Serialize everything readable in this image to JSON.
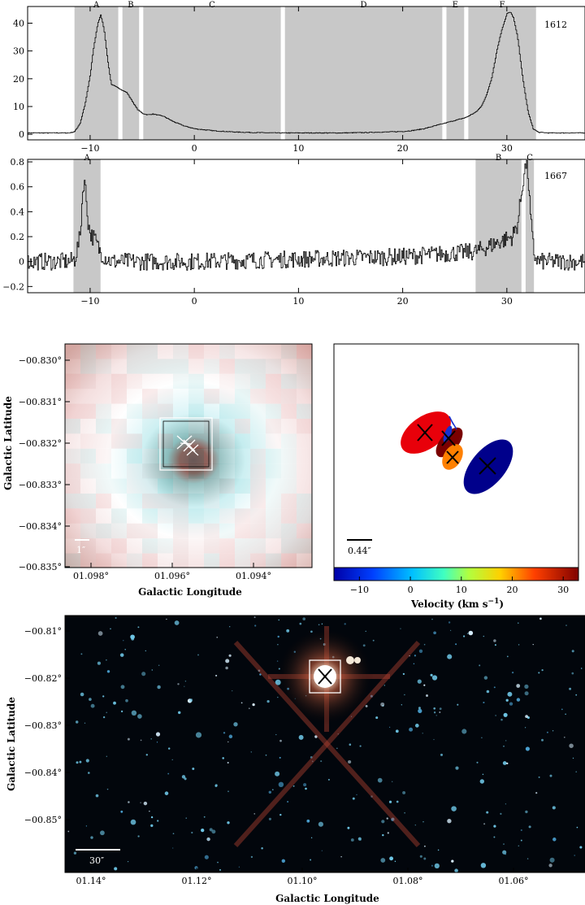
{
  "chart_data": [
    {
      "type": "line",
      "panel": "spectrum-1612",
      "annotation": "1612",
      "xlim": [
        -16,
        37.5
      ],
      "ylim": [
        -2,
        46
      ],
      "xticks": [
        -10,
        0,
        10,
        20,
        30
      ],
      "yticks": [
        0,
        10,
        20,
        30,
        40
      ],
      "regions": [
        {
          "label": "A",
          "x0": -11.5,
          "x1": -7.3
        },
        {
          "label": "B",
          "x0": -6.9,
          "x1": -5.3
        },
        {
          "label": "C",
          "x0": -4.9,
          "x1": 8.3
        },
        {
          "label": "D",
          "x0": 8.7,
          "x1": 23.8
        },
        {
          "label": "E",
          "x0": 24.2,
          "x1": 25.9
        },
        {
          "label": "F",
          "x0": 26.3,
          "x1": 32.8
        }
      ],
      "x": [
        -16,
        -12,
        -11.5,
        -11,
        -10.5,
        -10,
        -9.7,
        -9.3,
        -9.0,
        -8.7,
        -8.4,
        -8.0,
        -7.5,
        -7.0,
        -6.5,
        -6.0,
        -5.5,
        -5.0,
        -4.5,
        -4.0,
        -3.0,
        -2.0,
        -1.0,
        0,
        2,
        4,
        6,
        8,
        10,
        12,
        14,
        16,
        18,
        20,
        21,
        22,
        23,
        24,
        25,
        26,
        26.5,
        27,
        27.5,
        28,
        28.5,
        29,
        29.5,
        30,
        30.3,
        30.6,
        31,
        31.5,
        32,
        32.5,
        33,
        34,
        37.5
      ],
      "values": [
        0.5,
        0.5,
        1,
        4,
        11,
        22,
        31,
        40,
        43,
        38,
        28,
        18,
        17,
        16,
        15,
        12,
        9,
        7.5,
        7,
        7.3,
        6.5,
        4.5,
        3,
        2,
        1.2,
        0.8,
        0.6,
        0.5,
        0.5,
        0.5,
        0.5,
        0.6,
        0.8,
        1.0,
        1.4,
        2,
        3,
        4,
        5,
        6,
        7,
        8,
        10,
        14,
        20,
        30,
        38,
        43.5,
        44,
        42,
        35,
        20,
        8,
        2,
        0.7,
        0.5,
        0.5
      ]
    },
    {
      "type": "line",
      "panel": "spectrum-1667",
      "annotation": "1667",
      "xlim": [
        -16,
        37.5
      ],
      "ylim": [
        -0.25,
        0.82
      ],
      "xticks": [
        -10,
        0,
        10,
        20,
        30
      ],
      "yticks": [
        -0.2,
        0,
        0.2,
        0.4,
        0.6,
        0.8
      ],
      "regions": [
        {
          "label": "A",
          "x0": -11.6,
          "x1": -9.0
        },
        {
          "label": "B",
          "x0": 27.0,
          "x1": 31.4
        },
        {
          "label": "C",
          "x0": 31.8,
          "x1": 32.6
        }
      ],
      "x": [
        -16,
        -12,
        -11.5,
        -11.0,
        -10.8,
        -10.6,
        -10.4,
        -10.2,
        -10.0,
        -9.6,
        -9.2,
        -8.8,
        -8.0,
        0,
        10,
        20,
        27,
        29,
        30.5,
        31.0,
        31.3,
        31.6,
        31.8,
        32.0,
        32.2,
        32.4,
        32.6,
        33,
        34,
        37.5
      ],
      "values": [
        0,
        0,
        0.02,
        0.2,
        0.5,
        0.68,
        0.5,
        0.3,
        0.22,
        0.18,
        0.1,
        0.05,
        0,
        0,
        0.02,
        0.04,
        0.08,
        0.15,
        0.2,
        0.3,
        0.5,
        0.7,
        0.78,
        0.7,
        0.4,
        0.2,
        0.05,
        0,
        0,
        0
      ]
    },
    {
      "type": "heatmap",
      "panel": "zoom-image",
      "xlabel": "Galactic Longitude",
      "ylabel": "Galactic Latitude",
      "xticks": [
        "01.098°",
        "01.096°",
        "01.094°"
      ],
      "yticks": [
        "−00.830°",
        "−00.831°",
        "−00.832°",
        "−00.833°",
        "−00.834°",
        "−00.835°"
      ],
      "scale_bar": "1″"
    },
    {
      "type": "scatter",
      "panel": "maser-spots",
      "scale_bar": "0.44″",
      "colorbar_label": "Velocity (km s",
      "colorbar_label_sup": "−1",
      "colorbar_ticks": [
        -10,
        0,
        10,
        20,
        30
      ],
      "colorbar_range": [
        -15,
        33
      ]
    },
    {
      "type": "heatmap",
      "panel": "wide-field",
      "xlabel": "Galactic Longitude",
      "ylabel": "Galactic Latitude",
      "xticks": [
        "01.14°",
        "01.12°",
        "01.10°",
        "01.08°",
        "01.06°"
      ],
      "yticks": [
        "−00.81°",
        "−00.82°",
        "−00.83°",
        "−00.84°",
        "−00.85°"
      ],
      "scale_bar": "30″"
    }
  ]
}
